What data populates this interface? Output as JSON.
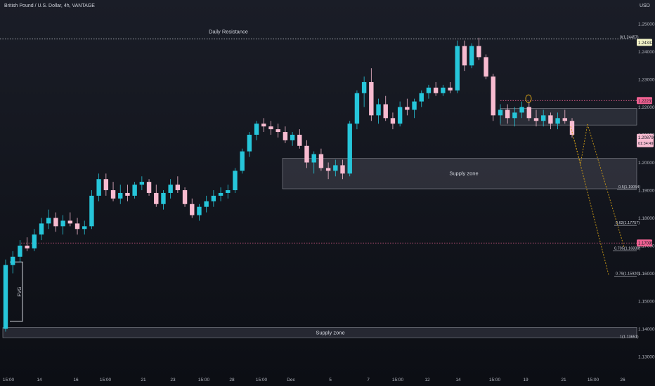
{
  "header": {
    "symbol": "British Pound / U.S. Dollar, 4h, VANTAGE",
    "currency": "USD"
  },
  "colors": {
    "up": "#26c6da",
    "down": "#f8bbd0",
    "zone": "#3a3d47",
    "fib": "#d4a017",
    "red_line": "#f06292",
    "white_line": "#d1d4dc",
    "bg": "#131722"
  },
  "chart_data": {
    "type": "candlestick",
    "timeframe": "4h",
    "ylim": [
      1.13,
      1.25
    ],
    "y_ticks": [
      "1.25000",
      "1.24000",
      "1.23000",
      "1.22000",
      "1.21000",
      "1.20000",
      "1.19000",
      "1.18000",
      "1.17000",
      "1.16000",
      "1.15000",
      "1.14000",
      "1.13000"
    ],
    "x_ticks": [
      "15:00",
      "14",
      "16",
      "15:00",
      "21",
      "23",
      "15:00",
      "28",
      "15:00",
      "Dec",
      "5",
      "7",
      "15:00",
      "12",
      "14",
      "15:00",
      "19",
      "21",
      "15:00",
      "26"
    ],
    "last_price": "1.20879",
    "countdown": "01:34:49",
    "price_tags": [
      {
        "label": "1.24332",
        "value": 1.24332,
        "style": "yellow"
      },
      {
        "label": "1.22233",
        "value": 1.22233,
        "style": "red"
      },
      {
        "label": "1.17095",
        "value": 1.17095,
        "style": "red"
      }
    ],
    "annotations": {
      "daily_resistance": {
        "label": "Daily Resistance",
        "value": 1.24457
      },
      "supply_zone_upper": {
        "label": "Supply zone",
        "top": 1.2015,
        "bottom": 1.1905
      },
      "supply_zone_lower": {
        "label": "Supply zone",
        "top": 1.1405,
        "bottom": 1.1368
      },
      "upper_box": {
        "top": 1.2195,
        "bottom": 1.2135
      },
      "fvg": {
        "label": "FVG",
        "top": 1.1641,
        "bottom": 1.1427
      },
      "fib_labels": [
        "0(1.24457)",
        "0.5(1.19054)",
        "0.62(1.17757)",
        "0.705(1.16839)",
        "0.79(1.15920)",
        "1(1.13651)"
      ],
      "fib_values": [
        1.24457,
        1.19054,
        1.17757,
        1.16839,
        1.1592,
        1.13651
      ],
      "circle_marker": 1.223
    },
    "candles": [
      [
        1.14,
        1.165,
        1.139,
        1.163
      ],
      [
        1.163,
        1.168,
        1.16,
        1.166
      ],
      [
        1.166,
        1.172,
        1.164,
        1.17
      ],
      [
        1.17,
        1.173,
        1.168,
        1.169
      ],
      [
        1.169,
        1.176,
        1.168,
        1.174
      ],
      [
        1.174,
        1.18,
        1.172,
        1.178
      ],
      [
        1.178,
        1.183,
        1.176,
        1.18
      ],
      [
        1.18,
        1.182,
        1.175,
        1.177
      ],
      [
        1.177,
        1.181,
        1.174,
        1.179
      ],
      [
        1.179,
        1.182,
        1.177,
        1.178
      ],
      [
        1.178,
        1.18,
        1.174,
        1.176
      ],
      [
        1.176,
        1.179,
        1.174,
        1.177
      ],
      [
        1.177,
        1.19,
        1.176,
        1.188
      ],
      [
        1.188,
        1.196,
        1.186,
        1.194
      ],
      [
        1.194,
        1.196,
        1.188,
        1.19
      ],
      [
        1.19,
        1.193,
        1.186,
        1.187
      ],
      [
        1.187,
        1.192,
        1.185,
        1.189
      ],
      [
        1.189,
        1.192,
        1.186,
        1.188
      ],
      [
        1.188,
        1.193,
        1.187,
        1.192
      ],
      [
        1.192,
        1.195,
        1.19,
        1.193
      ],
      [
        1.193,
        1.194,
        1.188,
        1.189
      ],
      [
        1.189,
        1.192,
        1.184,
        1.185
      ],
      [
        1.185,
        1.19,
        1.183,
        1.189
      ],
      [
        1.189,
        1.194,
        1.187,
        1.192
      ],
      [
        1.192,
        1.195,
        1.189,
        1.19
      ],
      [
        1.19,
        1.191,
        1.184,
        1.185
      ],
      [
        1.185,
        1.187,
        1.18,
        1.181
      ],
      [
        1.181,
        1.185,
        1.179,
        1.184
      ],
      [
        1.184,
        1.188,
        1.182,
        1.186
      ],
      [
        1.186,
        1.19,
        1.184,
        1.188
      ],
      [
        1.188,
        1.191,
        1.186,
        1.189
      ],
      [
        1.189,
        1.192,
        1.187,
        1.19
      ],
      [
        1.19,
        1.198,
        1.189,
        1.197
      ],
      [
        1.197,
        1.205,
        1.196,
        1.204
      ],
      [
        1.204,
        1.211,
        1.202,
        1.21
      ],
      [
        1.21,
        1.215,
        1.208,
        1.214
      ],
      [
        1.214,
        1.216,
        1.211,
        1.213
      ],
      [
        1.213,
        1.215,
        1.21,
        1.212
      ],
      [
        1.212,
        1.214,
        1.209,
        1.211
      ],
      [
        1.211,
        1.213,
        1.207,
        1.208
      ],
      [
        1.208,
        1.211,
        1.206,
        1.21
      ],
      [
        1.21,
        1.212,
        1.205,
        1.206
      ],
      [
        1.206,
        1.208,
        1.198,
        1.2
      ],
      [
        1.2,
        1.204,
        1.196,
        1.203
      ],
      [
        1.203,
        1.205,
        1.197,
        1.198
      ],
      [
        1.198,
        1.2,
        1.194,
        1.197
      ],
      [
        1.197,
        1.201,
        1.195,
        1.199
      ],
      [
        1.199,
        1.201,
        1.194,
        1.196
      ],
      [
        1.196,
        1.215,
        1.195,
        1.214
      ],
      [
        1.214,
        1.226,
        1.212,
        1.225
      ],
      [
        1.225,
        1.231,
        1.22,
        1.229
      ],
      [
        1.229,
        1.234,
        1.215,
        1.217
      ],
      [
        1.217,
        1.223,
        1.214,
        1.221
      ],
      [
        1.221,
        1.224,
        1.215,
        1.216
      ],
      [
        1.216,
        1.218,
        1.212,
        1.214
      ],
      [
        1.214,
        1.222,
        1.213,
        1.22
      ],
      [
        1.22,
        1.223,
        1.217,
        1.219
      ],
      [
        1.219,
        1.223,
        1.216,
        1.222
      ],
      [
        1.222,
        1.226,
        1.22,
        1.225
      ],
      [
        1.225,
        1.228,
        1.223,
        1.227
      ],
      [
        1.227,
        1.229,
        1.224,
        1.225
      ],
      [
        1.225,
        1.228,
        1.224,
        1.227
      ],
      [
        1.227,
        1.229,
        1.225,
        1.226
      ],
      [
        1.226,
        1.244,
        1.225,
        1.242
      ],
      [
        1.242,
        1.244,
        1.233,
        1.235
      ],
      [
        1.235,
        1.243,
        1.234,
        1.242
      ],
      [
        1.242,
        1.245,
        1.237,
        1.238
      ],
      [
        1.238,
        1.239,
        1.23,
        1.231
      ],
      [
        1.231,
        1.232,
        1.215,
        1.217
      ],
      [
        1.217,
        1.221,
        1.214,
        1.219
      ],
      [
        1.219,
        1.221,
        1.214,
        1.216
      ],
      [
        1.216,
        1.22,
        1.213,
        1.218
      ],
      [
        1.218,
        1.222,
        1.216,
        1.22
      ],
      [
        1.22,
        1.222,
        1.215,
        1.216
      ],
      [
        1.216,
        1.219,
        1.213,
        1.215
      ],
      [
        1.215,
        1.219,
        1.213,
        1.217
      ],
      [
        1.217,
        1.218,
        1.212,
        1.214
      ],
      [
        1.214,
        1.218,
        1.212,
        1.216
      ],
      [
        1.216,
        1.219,
        1.214,
        1.215
      ],
      [
        1.215,
        1.216,
        1.209,
        1.21
      ]
    ]
  }
}
